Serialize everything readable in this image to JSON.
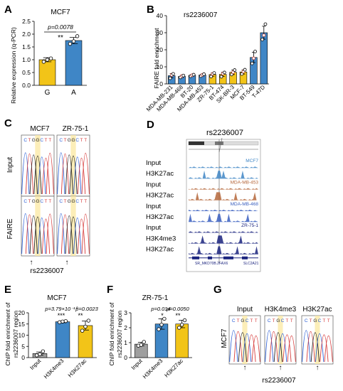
{
  "panels": {
    "A": {
      "letter": "A",
      "title": "MCF7",
      "ylabel": "Relative expression (q-PCR)",
      "pvalue": "p=0.0078",
      "stars": "**",
      "yticks": [
        "0.0",
        "0.5",
        "1.0",
        "1.5",
        "2.0",
        "2.5"
      ],
      "bars": [
        {
          "label": "G",
          "value": 1.0,
          "err": 0.08,
          "points": [
            0.92,
            1.0,
            1.05
          ],
          "color": "#f2c418"
        },
        {
          "label": "A",
          "value": 1.75,
          "err": 0.12,
          "points": [
            1.62,
            1.72,
            1.92
          ],
          "color": "#3f86c6"
        }
      ],
      "ylim": [
        0,
        2.5
      ]
    },
    "B": {
      "letter": "B",
      "title": "rs2236007",
      "ylabel": "FAIRE fold enrichment",
      "yticks": [
        "0",
        "10",
        "20",
        "30",
        "40"
      ],
      "ylim": [
        0,
        40
      ],
      "bars": [
        {
          "label": "MDA-MB-231",
          "value": 4.8,
          "err": 1.2,
          "points": [
            3.3,
            5.2,
            5.9
          ],
          "color": "#3f86c6"
        },
        {
          "label": "MDA-MB-468",
          "value": 4.4,
          "err": 0.6,
          "points": [
            3.8,
            4.6,
            4.9
          ],
          "color": "#3f86c6"
        },
        {
          "label": "BT-20",
          "value": 5.0,
          "err": 0.5,
          "points": [
            4.5,
            5.1,
            5.4
          ],
          "color": "#3f86c6"
        },
        {
          "label": "MDA-MB-453",
          "value": 5.2,
          "err": 0.6,
          "points": [
            4.6,
            5.3,
            5.7
          ],
          "color": "#3f86c6"
        },
        {
          "label": "ZR-75-1",
          "value": 5.5,
          "err": 1.0,
          "points": [
            4.3,
            5.8,
            6.4
          ],
          "color": "#f2c418"
        },
        {
          "label": "BT-474",
          "value": 5.6,
          "err": 1.2,
          "points": [
            4.2,
            6.0,
            6.7
          ],
          "color": "#f2c418"
        },
        {
          "label": "SK-BR-3",
          "value": 6.8,
          "err": 1.3,
          "points": [
            5.5,
            6.8,
            8.1
          ],
          "color": "#f2c418"
        },
        {
          "label": "MCF-7",
          "value": 7.0,
          "err": 1.2,
          "points": [
            5.8,
            7.2,
            8.3
          ],
          "color": "#f2c418"
        },
        {
          "label": "BT-549",
          "value": 15.5,
          "err": 3.0,
          "points": [
            12.0,
            15.0,
            19.0
          ],
          "color": "#3f86c6"
        },
        {
          "label": "T-47D",
          "value": 30.0,
          "err": 3.8,
          "points": [
            26.0,
            28.5,
            35.0
          ],
          "color": "#3f86c6"
        }
      ]
    },
    "C": {
      "letter": "C",
      "col1": "MCF7",
      "col2": "ZR-75-1",
      "row1": "Input",
      "row2": "FAIRE",
      "snp": "rs2236007",
      "bases": [
        "C",
        "T",
        "G",
        "G",
        "C",
        "T",
        "T"
      ]
    },
    "D": {
      "letter": "D",
      "title": "rs2236007",
      "tracks": [
        {
          "label": "Input",
          "tag": "MCF7",
          "color": "#3f86c6"
        },
        {
          "label": "H3K27ac",
          "tag": "",
          "color": "#3f86c6"
        },
        {
          "label": "Input",
          "tag": "MDA-MB-453",
          "color": "#b5673b"
        },
        {
          "label": "H3K27ac",
          "tag": "",
          "color": "#b5673b"
        },
        {
          "label": "Input",
          "tag": "MDA-MB-468",
          "color": "#3a5fbf"
        },
        {
          "label": "H3K27ac",
          "tag": "",
          "color": "#3a5fbf"
        },
        {
          "label": "Input",
          "tag": "ZR-75-1",
          "color": "#1a237e"
        },
        {
          "label": "H3K4me3",
          "tag": "",
          "color": "#1a237e"
        },
        {
          "label": "H3K27ac",
          "tag": "",
          "color": "#1a237e"
        }
      ],
      "genes": [
        "SR_MKD70B.2",
        "FAX6",
        "SLC2A21"
      ]
    },
    "E": {
      "letter": "E",
      "title": "MCF7",
      "ylabel1": "ChIP fold enrichment of",
      "ylabel2": "rs2236007 region",
      "yticks": [
        "0",
        "5",
        "10",
        "15",
        "20"
      ],
      "ylim": [
        0,
        20
      ],
      "p1": "p=3.79×10⁻¹⁰",
      "p2": "p=0.0023",
      "stars1": "***",
      "stars2": "**",
      "bars": [
        {
          "label": "Input",
          "value": 1.8,
          "err": 0.7,
          "points": [
            1.0,
            1.5,
            2.8
          ],
          "color": "#9e9e9e"
        },
        {
          "label": "H3K4me3",
          "value": 16.0,
          "err": 0.4,
          "points": [
            15.8,
            16.1,
            16.3
          ],
          "color": "#3f86c6"
        },
        {
          "label": "H3K27ac",
          "value": 14.3,
          "err": 2.0,
          "points": [
            12.0,
            13.8,
            16.5
          ],
          "color": "#f2c418"
        }
      ]
    },
    "F": {
      "letter": "F",
      "title": "ZR-75-1",
      "ylabel1": "ChIP fold enrichment of",
      "ylabel2": "rs2236007 region",
      "yticks": [
        "0",
        "1",
        "2",
        "3"
      ],
      "ylim": [
        0,
        3
      ],
      "p1": "p=0.014",
      "p2": "p=0.0050",
      "stars1": "*",
      "stars2": "**",
      "bars": [
        {
          "label": "Input",
          "value": 0.9,
          "err": 0.12,
          "points": [
            0.8,
            0.85,
            1.05
          ],
          "color": "#9e9e9e"
        },
        {
          "label": "H3K4me3",
          "value": 2.25,
          "err": 0.35,
          "points": [
            1.9,
            2.2,
            2.6
          ],
          "color": "#3f86c6"
        },
        {
          "label": "H3K27ac",
          "value": 2.25,
          "err": 0.25,
          "points": [
            2.0,
            2.2,
            2.5
          ],
          "color": "#f2c418"
        }
      ]
    },
    "G": {
      "letter": "G",
      "cols": [
        "Input",
        "H3K4me3",
        "H3K27ac"
      ],
      "row": "MCF7",
      "snp": "rs2236007",
      "bases": [
        "C",
        "T",
        "G",
        "C",
        "T",
        "T"
      ]
    }
  }
}
